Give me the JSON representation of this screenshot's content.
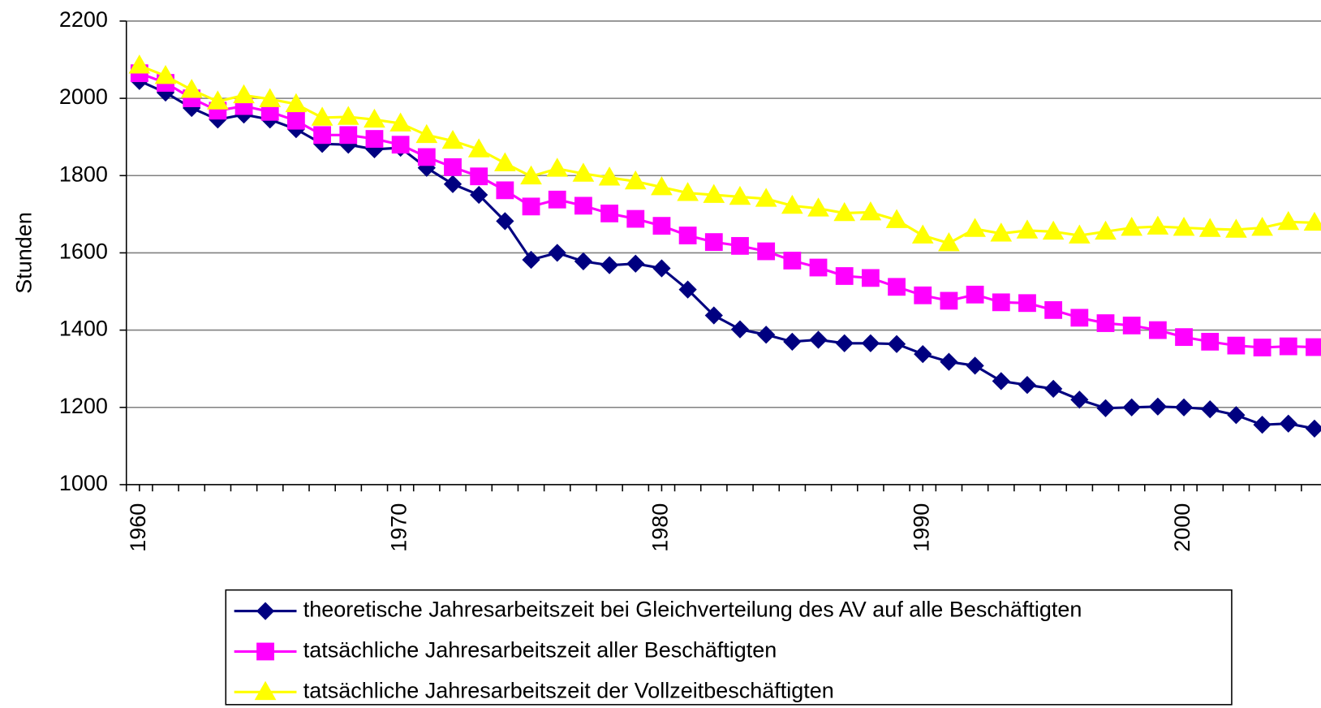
{
  "chart_data": {
    "type": "line",
    "y_label": "Stunden",
    "x": [
      1960,
      1961,
      1962,
      1963,
      1964,
      1965,
      1966,
      1967,
      1968,
      1969,
      1970,
      1971,
      1972,
      1973,
      1974,
      1975,
      1976,
      1977,
      1978,
      1979,
      1980,
      1981,
      1982,
      1983,
      1984,
      1985,
      1986,
      1987,
      1988,
      1989,
      1990,
      1991,
      1992,
      1993,
      1994,
      1995,
      1996,
      1997,
      1998,
      1999,
      2000,
      2001,
      2002,
      2003,
      2004,
      2005
    ],
    "xlim": [
      1959.5,
      2005.25
    ],
    "xticks": [
      1960,
      1970,
      1980,
      1990,
      2000
    ],
    "ylim": [
      1000,
      2200
    ],
    "yticks": [
      1000,
      1200,
      1400,
      1600,
      1800,
      2000,
      2200
    ],
    "grid": true,
    "legend": "bottom",
    "series": [
      {
        "name": "theoretische Jahresarbeitszeit bei Gleichverteilung des AV auf alle Beschäftigten",
        "color": "#000080",
        "marker": "diamond",
        "values": [
          2045,
          2015,
          1975,
          1945,
          1958,
          1945,
          1920,
          1882,
          1880,
          1868,
          1872,
          1820,
          1778,
          1750,
          1682,
          1582,
          1600,
          1578,
          1568,
          1572,
          1560,
          1505,
          1438,
          1402,
          1388,
          1370,
          1375,
          1366,
          1366,
          1364,
          1338,
          1318,
          1308,
          1268,
          1258,
          1248,
          1220,
          1198,
          1200,
          1202,
          1200,
          1195,
          1180,
          1155,
          1158,
          1145
        ]
      },
      {
        "name": "tatsächliche Jahresarbeitszeit aller Beschäftigten",
        "color": "#ff00ff",
        "marker": "square",
        "values": [
          2065,
          2040,
          2000,
          1968,
          1980,
          1965,
          1942,
          1905,
          1905,
          1895,
          1880,
          1848,
          1822,
          1798,
          1762,
          1720,
          1738,
          1722,
          1702,
          1688,
          1670,
          1645,
          1628,
          1618,
          1604,
          1580,
          1562,
          1540,
          1535,
          1512,
          1490,
          1476,
          1492,
          1472,
          1470,
          1452,
          1432,
          1418,
          1412,
          1400,
          1382,
          1370,
          1360,
          1355,
          1358,
          1356
        ]
      },
      {
        "name": "tatsächliche Jahresarbeitszeit der Vollzeitbeschäftigten",
        "color": "#ffff00",
        "marker": "triangle",
        "values": [
          2085,
          2058,
          2022,
          1992,
          2008,
          1998,
          1985,
          1950,
          1952,
          1945,
          1935,
          1905,
          1890,
          1868,
          1832,
          1798,
          1818,
          1805,
          1795,
          1785,
          1770,
          1755,
          1750,
          1745,
          1740,
          1722,
          1715,
          1703,
          1705,
          1685,
          1645,
          1625,
          1662,
          1650,
          1658,
          1655,
          1645,
          1655,
          1665,
          1668,
          1665,
          1662,
          1660,
          1665,
          1680,
          1678
        ]
      }
    ]
  }
}
